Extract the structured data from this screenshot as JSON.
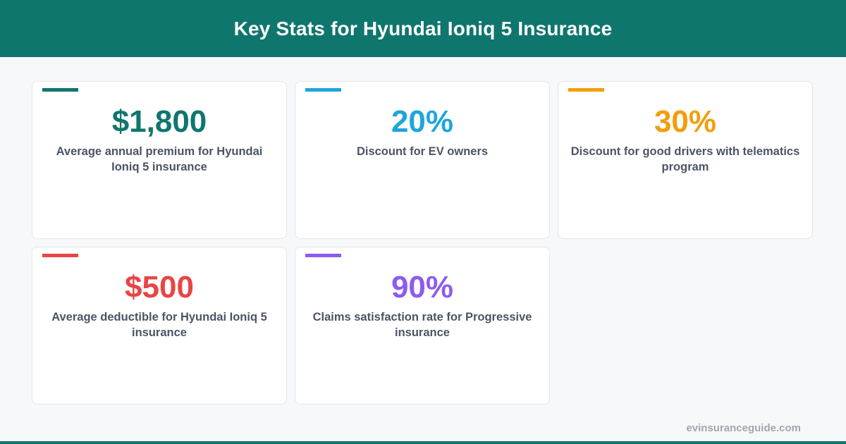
{
  "header": {
    "title": "Key Stats for Hyundai Ioniq 5 Insurance"
  },
  "stats": [
    {
      "value": "$1,800",
      "description": "Average annual premium for Hyundai Ioniq 5 insurance",
      "color": "#0f766e"
    },
    {
      "value": "20%",
      "description": "Discount for EV owners",
      "color": "#1ea5dd"
    },
    {
      "value": "30%",
      "description": "Discount for good drivers with telematics program",
      "color": "#f29e0c"
    },
    {
      "value": "$500",
      "description": "Average deductible for Hyundai Ioniq 5 insurance",
      "color": "#e84545"
    },
    {
      "value": "90%",
      "description": "Claims satisfaction rate for Progressive insurance",
      "color": "#8b5cf0"
    }
  ],
  "footer": {
    "site": "evinsuranceguide.com"
  },
  "colors": {
    "brand": "#0f766e",
    "text_muted": "#4a5565",
    "background": "#f7f8fa"
  }
}
